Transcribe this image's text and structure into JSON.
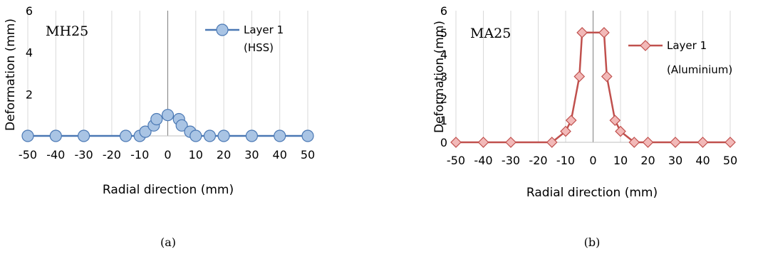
{
  "chart_data": [
    {
      "type": "line",
      "tag": "MH25",
      "caption": "(a)",
      "xlabel": "Radial direction (mm)",
      "ylabel": "Deformation (mm)",
      "xlim": [
        -50,
        50
      ],
      "ylim": [
        0,
        6
      ],
      "xticks": [
        -50,
        -40,
        -30,
        -20,
        -10,
        0,
        10,
        20,
        30,
        40,
        50
      ],
      "yticks": [
        0,
        2,
        4,
        6
      ],
      "grid": "vertical",
      "legend_position": "top-right",
      "marker": "circle",
      "line_color": "#4a78b4",
      "marker_fill": "#a9c4e4",
      "series": [
        {
          "legend_lines": [
            "Layer 1",
            "(HSS)"
          ],
          "x": [
            -50,
            -40,
            -30,
            -15,
            -10,
            -8,
            -5,
            -4,
            0,
            4,
            5,
            8,
            10,
            15,
            20,
            30,
            40,
            50
          ],
          "y": [
            0,
            0,
            0,
            0,
            0,
            0.2,
            0.5,
            0.8,
            1.0,
            0.8,
            0.5,
            0.2,
            0,
            0,
            0,
            0,
            0,
            0
          ]
        }
      ]
    },
    {
      "type": "line",
      "tag": "MA25",
      "caption": "(b)",
      "xlabel": "Radial direction  (mm)",
      "ylabel": "Deformation (mm)",
      "xlim": [
        -50,
        50
      ],
      "ylim": [
        0,
        6
      ],
      "xticks": [
        -50,
        -40,
        -30,
        -20,
        -10,
        0,
        10,
        20,
        30,
        40,
        50
      ],
      "yticks": [
        0,
        1,
        2,
        3,
        4,
        5,
        6
      ],
      "grid": "vertical",
      "legend_position": "top-right",
      "marker": "diamond",
      "line_color": "#c0504d",
      "marker_fill": "#f2b9b8",
      "series": [
        {
          "legend_lines": [
            "Layer 1",
            "(Aluminium)"
          ],
          "x": [
            -50,
            -40,
            -30,
            -15,
            -10,
            -8,
            -5,
            -4,
            4,
            5,
            8,
            10,
            15,
            20,
            30,
            40,
            50
          ],
          "y": [
            0,
            0,
            0,
            0,
            0.5,
            1.0,
            3.0,
            5.0,
            5.0,
            3.0,
            1.0,
            0.5,
            0,
            0,
            0,
            0,
            0
          ]
        }
      ]
    }
  ]
}
